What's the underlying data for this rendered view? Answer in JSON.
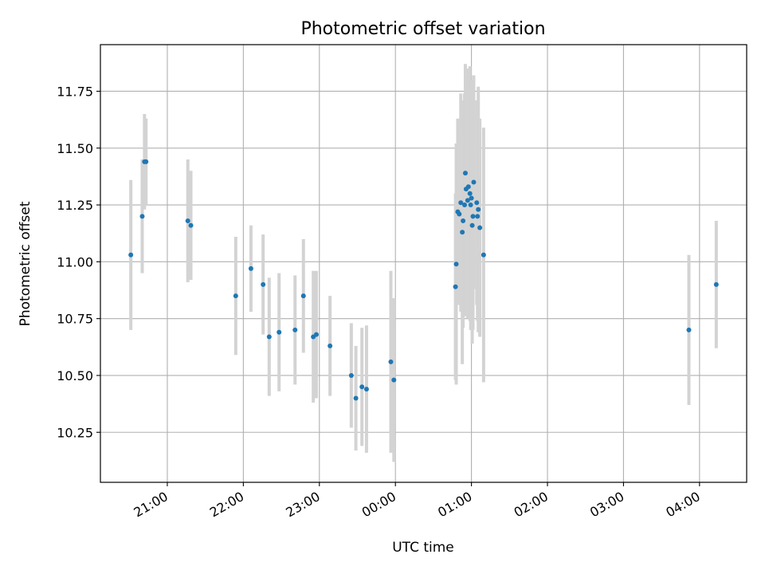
{
  "chart_data": {
    "type": "scatter",
    "title": "Photometric offset variation",
    "xlabel": "UTC time",
    "ylabel": "Photometric offset",
    "x_axis": {
      "unit": "hours since 00:00 UTC",
      "ticks": [
        {
          "value": -3,
          "label": "21:00"
        },
        {
          "value": -2,
          "label": "22:00"
        },
        {
          "value": -1,
          "label": "23:00"
        },
        {
          "value": 0,
          "label": "00:00"
        },
        {
          "value": 1,
          "label": "01:00"
        },
        {
          "value": 2,
          "label": "02:00"
        },
        {
          "value": 3,
          "label": "03:00"
        },
        {
          "value": 4,
          "label": "04:00"
        }
      ],
      "range": [
        -3.88,
        4.62
      ]
    },
    "y_axis": {
      "ticks": [
        {
          "value": 10.25,
          "label": "10.25"
        },
        {
          "value": 10.5,
          "label": "10.50"
        },
        {
          "value": 10.75,
          "label": "10.75"
        },
        {
          "value": 11.0,
          "label": "11.00"
        },
        {
          "value": 11.25,
          "label": "11.25"
        },
        {
          "value": 11.5,
          "label": "11.50"
        },
        {
          "value": 11.75,
          "label": "11.75"
        }
      ],
      "range": [
        10.03,
        11.955
      ]
    },
    "grid": true,
    "marker_color": "#1f77b4",
    "errorbar_color": "#d3d3d3",
    "points": [
      {
        "t": -3.48,
        "y": 11.03,
        "err": 0.33
      },
      {
        "t": -3.33,
        "y": 11.2,
        "err": 0.25
      },
      {
        "t": -3.3,
        "y": 11.44,
        "err": 0.21
      },
      {
        "t": -3.28,
        "y": 11.44,
        "err": 0.19
      },
      {
        "t": -2.73,
        "y": 11.18,
        "err": 0.27
      },
      {
        "t": -2.69,
        "y": 11.16,
        "err": 0.24
      },
      {
        "t": -2.1,
        "y": 10.85,
        "err": 0.26
      },
      {
        "t": -1.9,
        "y": 10.97,
        "err": 0.19
      },
      {
        "t": -1.74,
        "y": 10.9,
        "err": 0.22
      },
      {
        "t": -1.66,
        "y": 10.67,
        "err": 0.26
      },
      {
        "t": -1.53,
        "y": 10.69,
        "err": 0.26
      },
      {
        "t": -1.32,
        "y": 10.7,
        "err": 0.24
      },
      {
        "t": -1.21,
        "y": 10.85,
        "err": 0.25
      },
      {
        "t": -1.08,
        "y": 10.67,
        "err": 0.29
      },
      {
        "t": -1.04,
        "y": 10.68,
        "err": 0.28
      },
      {
        "t": -0.86,
        "y": 10.63,
        "err": 0.22
      },
      {
        "t": -0.58,
        "y": 10.5,
        "err": 0.23
      },
      {
        "t": -0.52,
        "y": 10.4,
        "err": 0.23
      },
      {
        "t": -0.44,
        "y": 10.45,
        "err": 0.26
      },
      {
        "t": -0.38,
        "y": 10.44,
        "err": 0.28
      },
      {
        "t": -0.06,
        "y": 10.56,
        "err": 0.4
      },
      {
        "t": -0.02,
        "y": 10.48,
        "err": 0.36
      },
      {
        "t": 0.79,
        "y": 10.89,
        "err": 0.41
      },
      {
        "t": 0.8,
        "y": 10.99,
        "err": 0.53
      },
      {
        "t": 0.82,
        "y": 11.22,
        "err": 0.41
      },
      {
        "t": 0.84,
        "y": 11.21,
        "err": 0.38
      },
      {
        "t": 0.86,
        "y": 11.26,
        "err": 0.48
      },
      {
        "t": 0.88,
        "y": 11.13,
        "err": 0.58
      },
      {
        "t": 0.89,
        "y": 11.18,
        "err": 0.47
      },
      {
        "t": 0.91,
        "y": 11.25,
        "err": 0.49
      },
      {
        "t": 0.92,
        "y": 11.39,
        "err": 0.48
      },
      {
        "t": 0.93,
        "y": 11.32,
        "err": 0.5
      },
      {
        "t": 0.95,
        "y": 11.27,
        "err": 0.52
      },
      {
        "t": 0.96,
        "y": 11.33,
        "err": 0.52
      },
      {
        "t": 0.98,
        "y": 11.3,
        "err": 0.56
      },
      {
        "t": 0.99,
        "y": 11.25,
        "err": 0.55
      },
      {
        "t": 1.0,
        "y": 11.28,
        "err": 0.52
      },
      {
        "t": 1.01,
        "y": 11.16,
        "err": 0.52
      },
      {
        "t": 1.02,
        "y": 11.2,
        "err": 0.5
      },
      {
        "t": 1.03,
        "y": 11.35,
        "err": 0.47
      },
      {
        "t": 1.07,
        "y": 11.26,
        "err": 0.45
      },
      {
        "t": 1.08,
        "y": 11.2,
        "err": 0.46
      },
      {
        "t": 1.09,
        "y": 11.23,
        "err": 0.54
      },
      {
        "t": 1.11,
        "y": 11.15,
        "err": 0.48
      },
      {
        "t": 1.16,
        "y": 11.03,
        "err": 0.56
      },
      {
        "t": 3.86,
        "y": 10.7,
        "err": 0.33
      },
      {
        "t": 4.22,
        "y": 10.9,
        "err": 0.28
      }
    ]
  }
}
